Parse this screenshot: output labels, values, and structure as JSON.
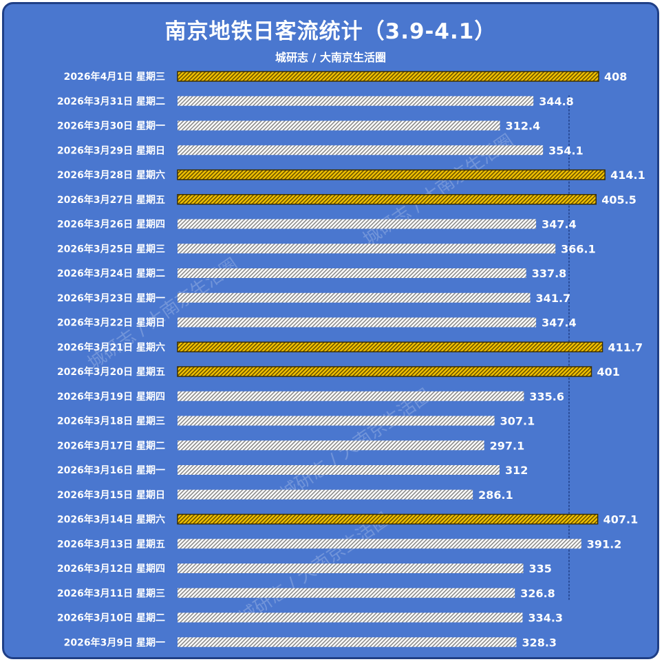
{
  "title": "南京地铁日客流统计（3.9-4.1）",
  "subtitle": "城研志 / 大南京生活圈",
  "watermark": "城研志 / 大南京生活圈",
  "colors": {
    "background": "#4a77cf",
    "highlight": "#f2c200",
    "normal": "#ffffff",
    "stripe_dark": "#2b2b2b",
    "stripe_light": "#7a7a7a",
    "text": "#ffffff"
  },
  "chart_data": {
    "type": "bar",
    "orientation": "horizontal",
    "title": "南京地铁日客流统计（3.9-4.1）",
    "subtitle": "城研志 / 大南京生活圈",
    "xlim": [
      0,
      420
    ],
    "reference_line": 400,
    "categories": [
      "2026年4月1日  星期三",
      "2026年3月31日  星期二",
      "2026年3月30日  星期一",
      "2026年3月29日  星期日",
      "2026年3月28日  星期六",
      "2026年3月27日  星期五",
      "2026年3月26日  星期四",
      "2026年3月25日  星期三",
      "2026年3月24日  星期二",
      "2026年3月23日  星期一",
      "2026年3月22日  星期日",
      "2026年3月21日  星期六",
      "2026年3月20日  星期五",
      "2026年3月19日  星期四",
      "2026年3月18日  星期三",
      "2026年3月17日  星期二",
      "2026年3月16日  星期一",
      "2026年3月15日  星期日",
      "2026年3月14日  星期六",
      "2026年3月13日  星期五",
      "2026年3月12日  星期四",
      "2026年3月11日  星期三",
      "2026年3月10日  星期二",
      "2026年3月9日  星期一"
    ],
    "values": [
      408,
      344.8,
      312.4,
      354.1,
      414.1,
      405.5,
      347.4,
      366.1,
      337.8,
      341.7,
      347.4,
      411.7,
      401,
      335.6,
      307.1,
      297.1,
      312,
      286.1,
      407.1,
      391.2,
      335,
      326.8,
      334.3,
      328.3
    ],
    "labels": [
      "408",
      "344.8",
      "312.4",
      "354.1",
      "414.1",
      "405.5",
      "347.4",
      "366.1",
      "337.8",
      "341.7",
      "347.4",
      "411.7",
      "401",
      "335.6",
      "307.1",
      "297.1",
      "312",
      "286.1",
      "407.1",
      "391.2",
      "335",
      "326.8",
      "334.3",
      "328.3"
    ],
    "highlighted": [
      true,
      false,
      false,
      false,
      true,
      true,
      false,
      false,
      false,
      false,
      false,
      true,
      true,
      false,
      false,
      false,
      false,
      false,
      true,
      false,
      false,
      false,
      false,
      false
    ]
  }
}
